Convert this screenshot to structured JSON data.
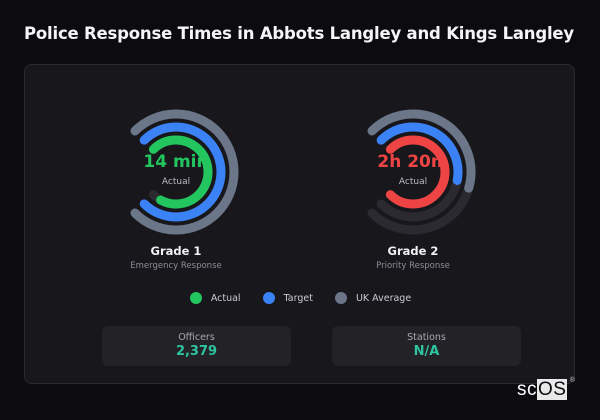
{
  "title": "Police Response Times in Abbots Langley and Kings Langley",
  "colors": {
    "actual_good": "#22c55e",
    "actual_bad": "#ef4444",
    "target": "#3b82f6",
    "uk_average": "#6b7689",
    "track": "#2a2a30",
    "stat_value": "#2ec4a0"
  },
  "gauges": [
    {
      "value": "14 min",
      "sublabel": "Actual",
      "label": "Grade 1",
      "description": "Emergency Response",
      "value_color": "#22c55e"
    },
    {
      "value": "2h 20m",
      "sublabel": "Actual",
      "label": "Grade 2",
      "description": "Priority Response",
      "value_color": "#ef4444"
    }
  ],
  "legend": [
    {
      "label": "Actual",
      "color": "#22c55e"
    },
    {
      "label": "Target",
      "color": "#3b82f6"
    },
    {
      "label": "UK Average",
      "color": "#6b7689"
    }
  ],
  "stats": [
    {
      "label": "Officers",
      "value": "2,379"
    },
    {
      "label": "Stations",
      "value": "N/A"
    }
  ],
  "brand": {
    "prefix": "sc",
    "suffix": "OS",
    "mark": "®"
  },
  "chart_data": {
    "type": "radial-gauge",
    "title": "Police Response Times in Abbots Langley and Kings Langley",
    "sweep_degrees": 270,
    "start_position": "10:30 clockwise",
    "series_order_outer_to_inner": [
      "UK Average",
      "Target",
      "Actual"
    ],
    "gauges": [
      {
        "name": "Grade 1",
        "subtitle": "Emergency Response",
        "center_label": "14 min",
        "fractions": {
          "UK Average": 1.0,
          "Target": 1.0,
          "Actual": 0.94
        },
        "actual_color": "#22c55e"
      },
      {
        "name": "Grade 2",
        "subtitle": "Priority Response",
        "center_label": "2h 20m",
        "fractions": {
          "UK Average": 0.56,
          "Target": 0.54,
          "Actual": 1.0
        },
        "actual_color": "#ef4444"
      }
    ],
    "legend": [
      "Actual",
      "Target",
      "UK Average"
    ],
    "legend_position": "bottom"
  }
}
